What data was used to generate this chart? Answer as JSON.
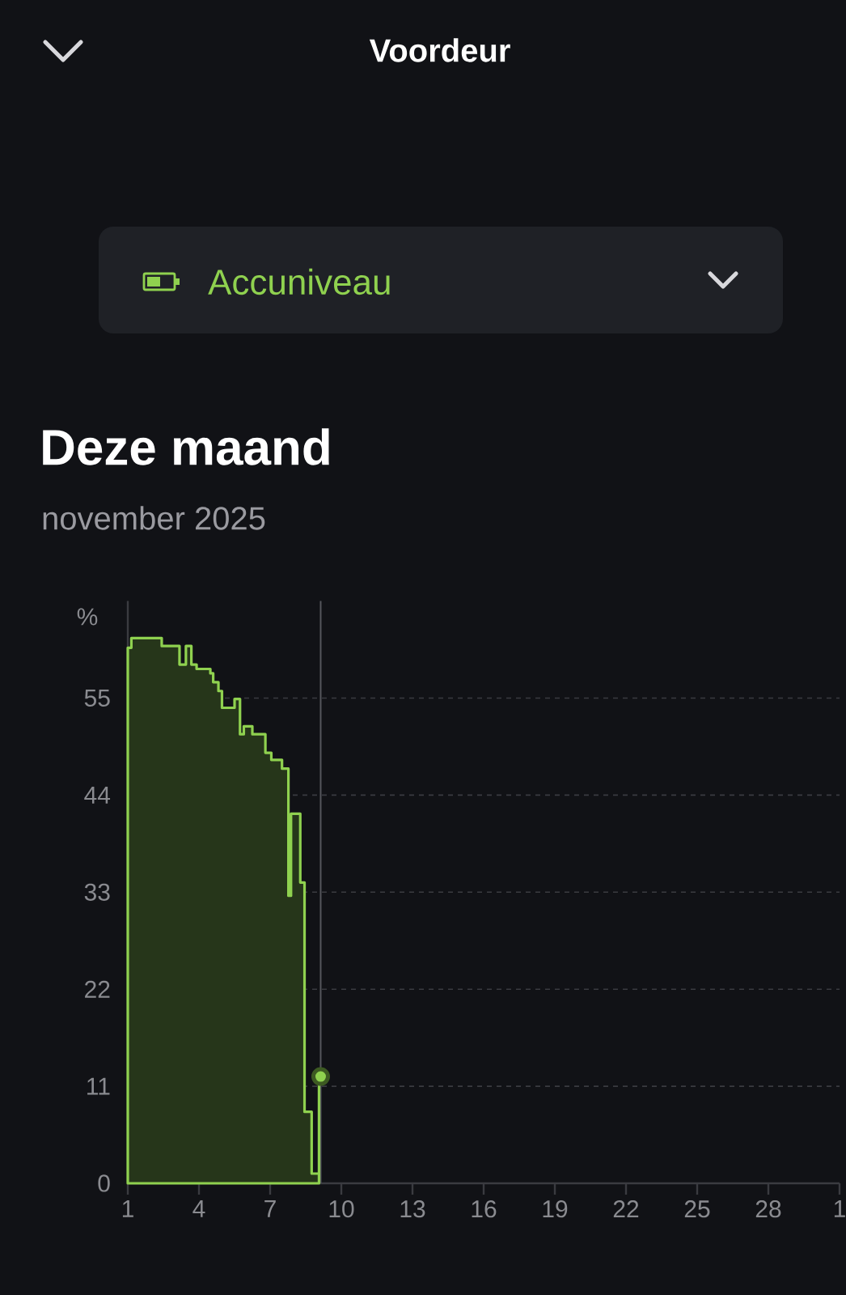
{
  "chart_data": {
    "type": "area",
    "title": "Deze maand",
    "subtitle": "november 2025",
    "ylabel": "%",
    "annotations": [
      "Voordeur",
      "Accuniveau"
    ],
    "xlim": [
      "2025-11-01",
      "2025-12-01"
    ],
    "xticks": [
      {
        "value": "2025-11-01",
        "label": "1"
      },
      {
        "value": "2025-11-04",
        "label": "4"
      },
      {
        "value": "2025-11-07",
        "label": "7"
      },
      {
        "value": "2025-11-10",
        "label": "10"
      },
      {
        "value": "2025-11-13",
        "label": "13"
      },
      {
        "value": "2025-11-16",
        "label": "16"
      },
      {
        "value": "2025-11-19",
        "label": "19"
      },
      {
        "value": "2025-11-22",
        "label": "22"
      },
      {
        "value": "2025-11-25",
        "label": "25"
      },
      {
        "value": "2025-11-28",
        "label": "28"
      },
      {
        "value": "2025-12-01",
        "label": "1"
      }
    ],
    "ylim": [
      0,
      66
    ],
    "yticks": [
      0,
      11,
      22,
      33,
      44,
      55
    ],
    "grid": "y",
    "ref_lines": [
      {
        "axis": "x",
        "value": "2025-11-09T03:07",
        "color": "#55565c"
      }
    ],
    "series": [
      {
        "color": "#8fd14f",
        "x": [
          "2025-11-01T00:00",
          "2025-11-01T03:36",
          "2025-11-01T03:36",
          "2025-11-02T10:19",
          "2025-11-02T10:19",
          "2025-11-03T04:19",
          "2025-11-03T04:19",
          "2025-11-03T10:48",
          "2025-11-03T10:48",
          "2025-11-03T16:19",
          "2025-11-03T16:19",
          "2025-11-03T21:36",
          "2025-11-03T21:36",
          "2025-11-04T11:31",
          "2025-11-04T11:31",
          "2025-11-04T14:24",
          "2025-11-04T14:24",
          "2025-11-04T19:41",
          "2025-11-04T19:41",
          "2025-11-04T23:17",
          "2025-11-04T23:17",
          "2025-11-05T12:00",
          "2025-11-05T12:00",
          "2025-11-05T17:31",
          "2025-11-05T17:31",
          "2025-11-05T21:22",
          "2025-11-05T21:22",
          "2025-11-06T06:00",
          "2025-11-06T06:00",
          "2025-11-06T19:12",
          "2025-11-06T19:12",
          "2025-11-07T01:12",
          "2025-11-07T01:12",
          "2025-11-07T12:00",
          "2025-11-07T12:00",
          "2025-11-07T18:29",
          "2025-11-07T18:29",
          "2025-11-07T21:07",
          "2025-11-07T21:07",
          "2025-11-08T06:29",
          "2025-11-08T06:29",
          "2025-11-08T10:48",
          "2025-11-08T10:48",
          "2025-11-08T18:00",
          "2025-11-08T18:00",
          "2025-11-09T01:26",
          "2025-11-09T01:26"
        ],
        "values": [
          60.7,
          60.7,
          61.8,
          61.8,
          60.9,
          60.9,
          58.8,
          58.8,
          60.9,
          60.9,
          58.8,
          58.8,
          58.3,
          58.3,
          57.8,
          57.8,
          56.8,
          56.8,
          55.8,
          55.8,
          53.9,
          53.9,
          54.9,
          54.9,
          50.9,
          50.9,
          51.8,
          51.8,
          50.9,
          50.9,
          48.8,
          48.8,
          48.0,
          48.0,
          47.0,
          47.0,
          32.6,
          32.6,
          41.9,
          41.9,
          34.1,
          34.1,
          8.1,
          8.1,
          1.1,
          1.1,
          12.1
        ]
      },
      {
        "type": "scatter",
        "marker": "circle",
        "color": "#8fd14f",
        "x": [
          "2025-11-09T03:07"
        ],
        "values": [
          12.1
        ]
      }
    ]
  }
}
